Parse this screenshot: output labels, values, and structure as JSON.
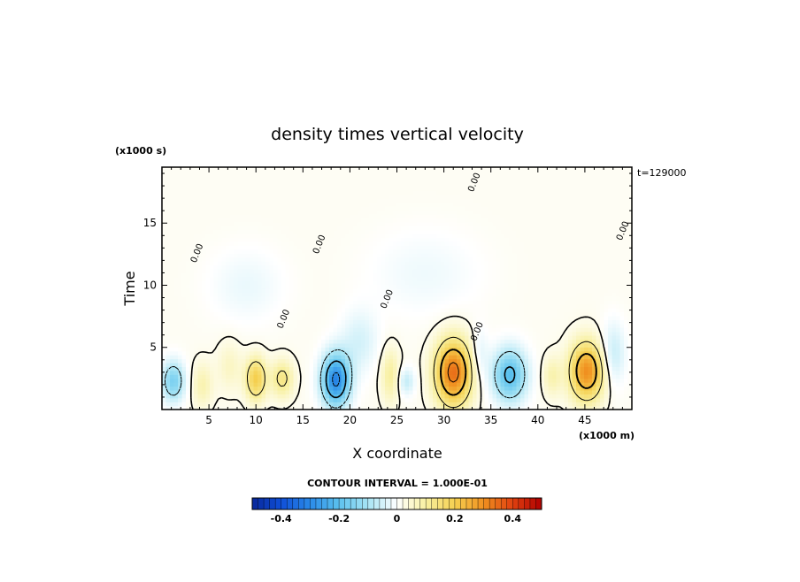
{
  "chart_data": {
    "type": "heatmap",
    "title": "density times vertical velocity",
    "xlabel": "X coordinate",
    "ylabel": "Time",
    "x_unit": "(x1000 m)",
    "y_unit": "(x1000 s)",
    "timestamp": "t=129000",
    "xlim": [
      0,
      50
    ],
    "ylim": [
      0,
      19.5
    ],
    "x_ticks": [
      5,
      10,
      15,
      20,
      25,
      30,
      35,
      40,
      45
    ],
    "y_ticks": [
      5,
      10,
      15
    ],
    "contour_interval_label": "CONTOUR INTERVAL = 1.000E-01",
    "contour_labels": [
      {
        "text": "0.00",
        "x": 4.0,
        "y": 12.5
      },
      {
        "text": "0.00",
        "x": 13.2,
        "y": 7.2
      },
      {
        "text": "0.00",
        "x": 17.0,
        "y": 13.2
      },
      {
        "text": "0.00",
        "x": 24.2,
        "y": 8.8
      },
      {
        "text": "0.00",
        "x": 33.5,
        "y": 18.2
      },
      {
        "text": "0.00",
        "x": 33.8,
        "y": 6.2
      },
      {
        "text": "0.00",
        "x": 49.3,
        "y": 14.3
      }
    ],
    "blobs": [
      {
        "x": 1.2,
        "y": 2.3,
        "sx": 1.2,
        "sy": 1.6,
        "a": -0.17
      },
      {
        "x": 4.3,
        "y": 2.0,
        "sx": 1.1,
        "sy": 1.8,
        "a": 0.07
      },
      {
        "x": 7.2,
        "y": 3.5,
        "sx": 1.3,
        "sy": 2.0,
        "a": 0.05
      },
      {
        "x": 10.0,
        "y": 2.5,
        "sx": 1.1,
        "sy": 1.7,
        "a": 0.19
      },
      {
        "x": 12.8,
        "y": 2.5,
        "sx": 1.2,
        "sy": 1.5,
        "a": 0.12
      },
      {
        "x": 18.5,
        "y": 2.4,
        "sx": 1.5,
        "sy": 2.1,
        "a": -0.32
      },
      {
        "x": 21.0,
        "y": 5.5,
        "sx": 2.0,
        "sy": 2.5,
        "a": -0.06
      },
      {
        "x": 24.3,
        "y": 2.8,
        "sx": 1.0,
        "sy": 2.2,
        "a": 0.09
      },
      {
        "x": 26.0,
        "y": 2.3,
        "sx": 0.9,
        "sy": 1.1,
        "a": -0.08
      },
      {
        "x": 31.0,
        "y": 3.0,
        "sx": 1.9,
        "sy": 2.6,
        "a": 0.33
      },
      {
        "x": 33.8,
        "y": 4.5,
        "sx": 0.9,
        "sy": 2.0,
        "a": -0.05
      },
      {
        "x": 37.0,
        "y": 2.8,
        "sx": 1.8,
        "sy": 2.1,
        "a": -0.22
      },
      {
        "x": 41.5,
        "y": 2.7,
        "sx": 1.0,
        "sy": 1.6,
        "a": 0.07
      },
      {
        "x": 45.2,
        "y": 3.1,
        "sx": 1.8,
        "sy": 2.3,
        "a": 0.29
      },
      {
        "x": 48.0,
        "y": 4.5,
        "sx": 1.3,
        "sy": 2.5,
        "a": -0.08
      },
      {
        "x": 9.0,
        "y": 10.0,
        "sx": 4.0,
        "sy": 3.0,
        "a": -0.035
      },
      {
        "x": 28.0,
        "y": 11.0,
        "sx": 6.0,
        "sy": 3.5,
        "a": -0.03
      }
    ],
    "colorbar": {
      "min": -0.5,
      "max": 0.5,
      "ticks": [
        {
          "value": -0.4,
          "label": "-0.4"
        },
        {
          "value": -0.2,
          "label": "-0.2"
        },
        {
          "value": 0,
          "label": "0"
        },
        {
          "value": 0.2,
          "label": "0.2"
        },
        {
          "value": 0.4,
          "label": "0.4"
        }
      ],
      "stops": [
        "#08279a",
        "#0f4fd8",
        "#2a8ae8",
        "#5cc2ee",
        "#a8e4f4",
        "#ffffff",
        "#f8f0a0",
        "#f5d050",
        "#f09020",
        "#e04010",
        "#b00000"
      ]
    }
  }
}
